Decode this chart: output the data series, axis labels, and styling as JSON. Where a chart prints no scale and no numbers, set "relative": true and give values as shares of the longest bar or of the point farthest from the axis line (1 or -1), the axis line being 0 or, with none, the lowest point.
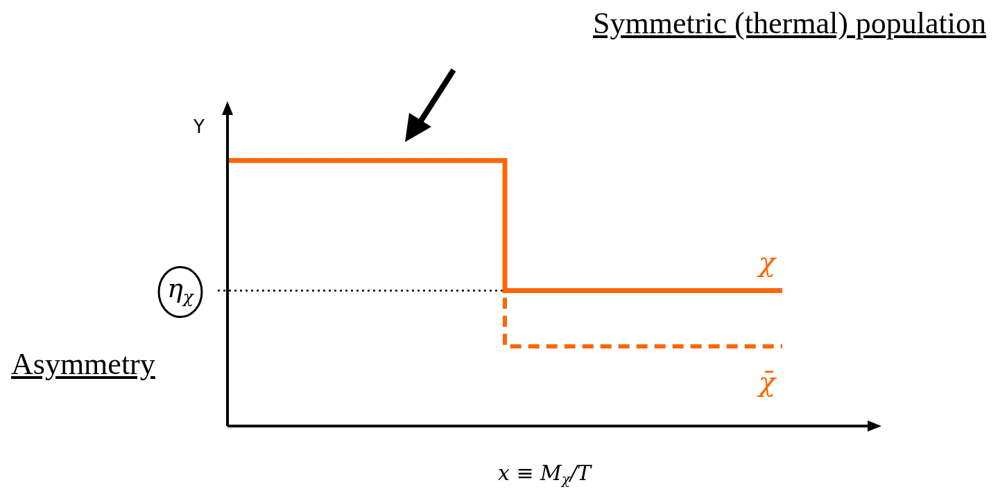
{
  "chart_data": {
    "type": "step",
    "relative": true,
    "categories": [
      null,
      null,
      null
    ],
    "series": [
      {
        "name": "χ",
        "color": "#ff6600",
        "values": [
          1,
          0.51,
          0.51
        ],
        "line_style": "solid"
      },
      {
        "name": "χ̄",
        "color": "#ff6600",
        "values": [
          1,
          0.3,
          0.3
        ],
        "line_style": "dashed"
      }
    ],
    "ylabel": "Y",
    "xlabel": "x ≡ M$_{χ}$/T",
    "ref_lines": [
      {
        "axis": "y",
        "value": 0.51,
        "label": "η$_{χ}$",
        "line_style": "dotted",
        "color": "#000000"
      }
    ],
    "annotations": [
      "Symmetric (thermal) population",
      "Asymmetry"
    ],
    "legend": false,
    "grid": false,
    "marker": "none"
  }
}
